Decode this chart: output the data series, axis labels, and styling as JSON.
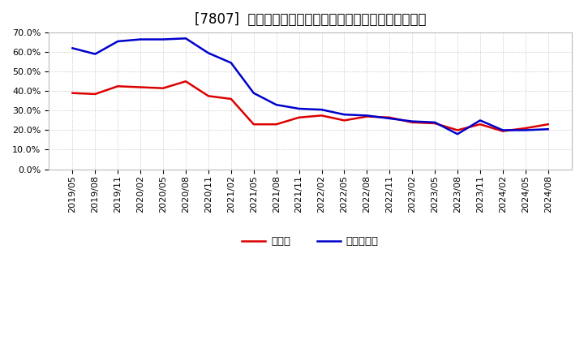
{
  "title": "[7807]  現預金、有利子負債の総資産に対する比率の推移",
  "x_labels": [
    "2019/05",
    "2019/08",
    "2019/11",
    "2020/02",
    "2020/05",
    "2020/08",
    "2020/11",
    "2021/02",
    "2021/05",
    "2021/08",
    "2021/11",
    "2022/02",
    "2022/05",
    "2022/08",
    "2022/11",
    "2023/02",
    "2023/05",
    "2023/08",
    "2023/11",
    "2024/02",
    "2024/05",
    "2024/08"
  ],
  "cash": [
    0.39,
    0.385,
    0.425,
    0.42,
    0.415,
    0.45,
    0.375,
    0.36,
    0.23,
    0.23,
    0.265,
    0.275,
    0.25,
    0.27,
    0.265,
    0.24,
    0.235,
    0.2,
    0.23,
    0.195,
    0.21,
    0.23
  ],
  "debt": [
    0.62,
    0.59,
    0.655,
    0.665,
    0.665,
    0.67,
    0.595,
    0.545,
    0.39,
    0.33,
    0.31,
    0.305,
    0.28,
    0.275,
    0.26,
    0.245,
    0.24,
    0.18,
    0.25,
    0.2,
    0.2,
    0.205
  ],
  "cash_color": "#dd0000",
  "debt_color": "#0000cc",
  "ylim": [
    0.0,
    0.7
  ],
  "yticks": [
    0.0,
    0.1,
    0.2,
    0.3,
    0.4,
    0.5,
    0.6,
    0.7
  ],
  "background_color": "#ffffff",
  "plot_bg_color": "#ffffff",
  "grid_color": "#aaaaaa",
  "legend_cash": "現預金",
  "legend_debt": "有利子負債",
  "title_fontsize": 12,
  "tick_fontsize": 8,
  "legend_fontsize": 9.5,
  "line_width": 1.8
}
